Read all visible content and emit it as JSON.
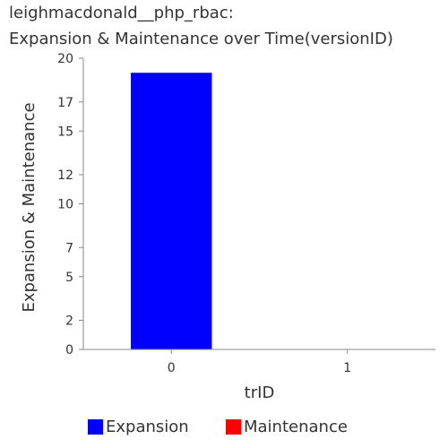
{
  "chart_data": {
    "type": "bar",
    "title": "leighmacdonald__php_rbac:",
    "subtitle": "Expansion & Maintenance over Time(versionID)",
    "xlabel": "trID",
    "ylabel": "Expansion & Maintenance",
    "categories": [
      "0",
      "1"
    ],
    "series": [
      {
        "name": "Expansion",
        "color": "#0000ff",
        "values": [
          19,
          0
        ]
      },
      {
        "name": "Maintenance",
        "color": "#ff0000",
        "values": [
          0,
          0
        ]
      }
    ],
    "ylim": [
      0,
      20
    ],
    "yticks": [
      0,
      2,
      5,
      7,
      10,
      12,
      15,
      17,
      20
    ],
    "grid": false,
    "legend_position": "bottom"
  }
}
